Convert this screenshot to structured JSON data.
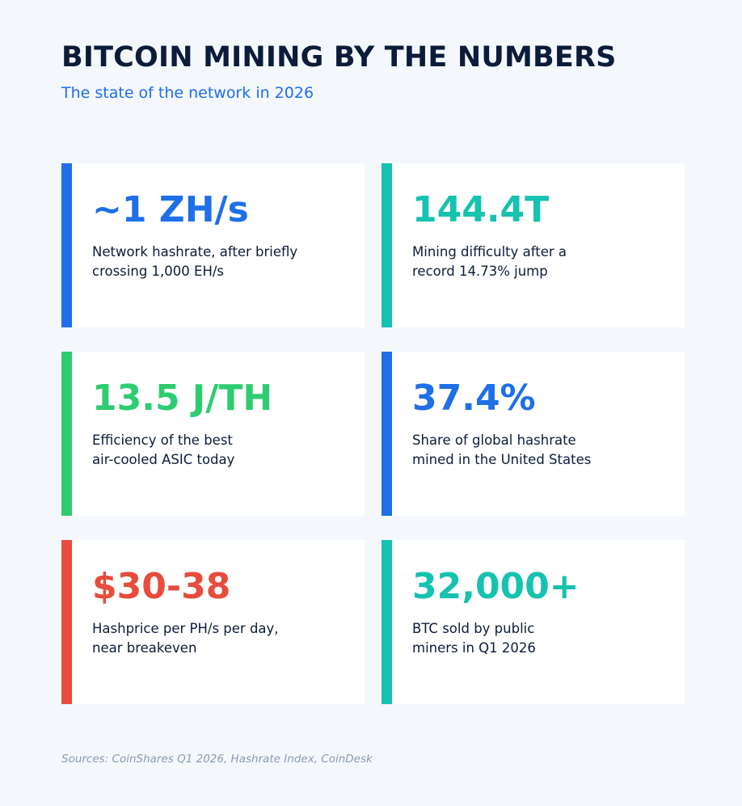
{
  "header": {
    "title": "BITCOIN MINING BY THE NUMBERS",
    "subtitle": "The state of the network in 2026"
  },
  "colors": {
    "background": "#f4f7fc",
    "title": "#0b1c3b",
    "blue": "#1e6fe8",
    "teal": "#16c2b0",
    "green": "#2ecc71",
    "red": "#e74c3c"
  },
  "stats": [
    {
      "value": "~1 ZH/s",
      "description": "Network hashrate, after briefly\ncrossing 1,000 EH/s",
      "accent": "#1e6fe8"
    },
    {
      "value": "144.4T",
      "description": "Mining difficulty after a\nrecord 14.73% jump",
      "accent": "#16c2b0"
    },
    {
      "value": "13.5 J/TH",
      "description": "Efficiency of the best\nair-cooled ASIC today",
      "accent": "#2ecc71"
    },
    {
      "value": "37.4%",
      "description": "Share of global hashrate\nmined in the United States",
      "accent": "#1e6fe8"
    },
    {
      "value": "$30-38",
      "description": "Hashprice per PH/s per day,\nnear breakeven",
      "accent": "#e74c3c"
    },
    {
      "value": "32,000+",
      "description": "BTC sold by public\nminers in Q1 2026",
      "accent": "#16c2b0"
    }
  ],
  "footer": {
    "sources": "Sources: CoinShares Q1 2026, Hashrate Index, CoinDesk"
  }
}
